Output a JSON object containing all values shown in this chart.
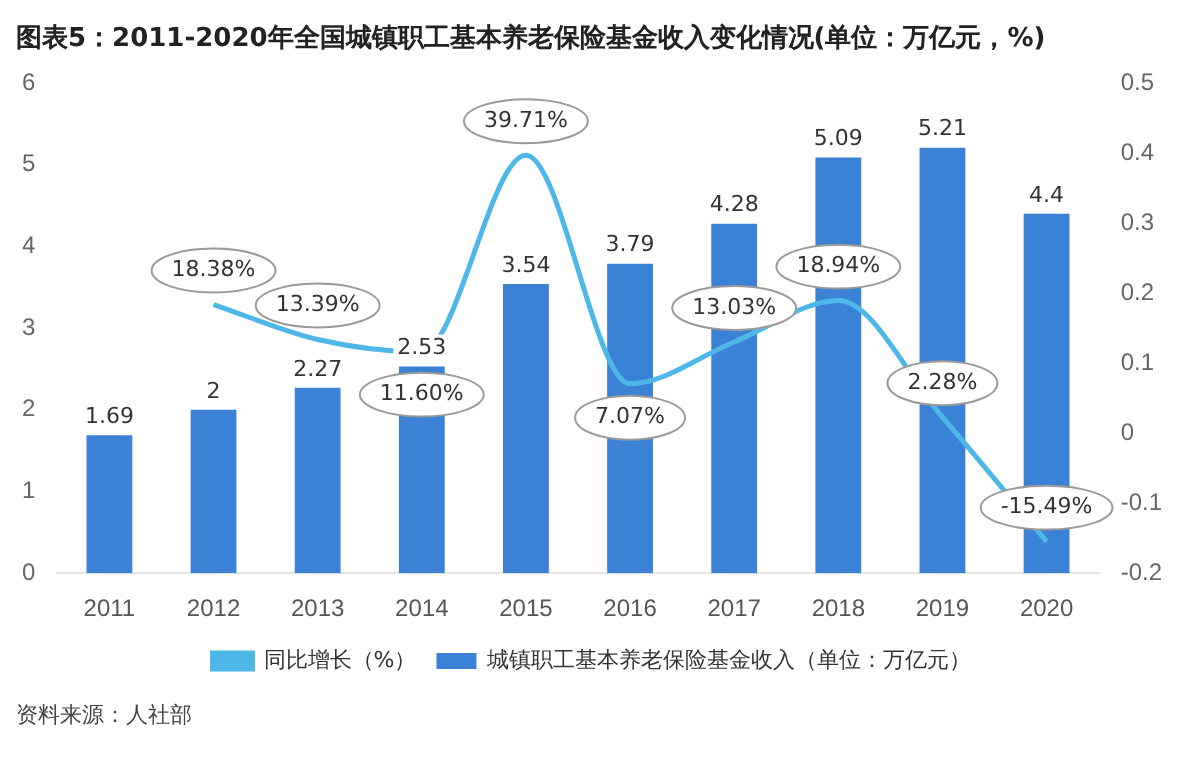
{
  "chart_data": {
    "type": "bar",
    "title": "图表5：2011-2020年全国城镇职工基本养老保险基金收入变化情况(单位：万亿元，%)",
    "categories": [
      "2011",
      "2012",
      "2013",
      "2014",
      "2015",
      "2016",
      "2017",
      "2018",
      "2019",
      "2020"
    ],
    "series": [
      {
        "name": "城镇职工基本养老保险基金收入（单位：万亿元）",
        "color": "#3b82d6",
        "values": [
          1.69,
          2,
          2.27,
          2.53,
          3.54,
          3.79,
          4.28,
          5.09,
          5.21,
          4.4
        ],
        "value_labels": [
          "1.69",
          "2",
          "2.27",
          "2.53",
          "3.54",
          "3.79",
          "4.28",
          "5.09",
          "5.21",
          "4.4"
        ]
      },
      {
        "name": "同比增长（%）",
        "type": "line",
        "axis": "y2",
        "color": "#4db8e8",
        "marker": "none",
        "values": [
          null,
          0.1838,
          0.1339,
          0.116,
          0.3971,
          0.0707,
          0.1303,
          0.1894,
          0.0228,
          -0.1549
        ],
        "value_labels": [
          null,
          "18.38%",
          "13.39%",
          "11.60%",
          "39.71%",
          "7.07%",
          "13.03%",
          "18.94%",
          "2.28%",
          "-15.49%"
        ]
      }
    ],
    "ylim": [
      0,
      6
    ],
    "yticks": [
      0,
      1,
      2,
      3,
      4,
      5,
      6
    ],
    "y2lim": [
      -0.2,
      0.5
    ],
    "y2ticks": [
      -0.2,
      -0.1,
      0,
      0.1,
      0.2,
      0.3,
      0.4,
      0.5
    ],
    "grid": false,
    "legend": "bottom",
    "annotations": [
      "资料来源：人社部"
    ]
  }
}
